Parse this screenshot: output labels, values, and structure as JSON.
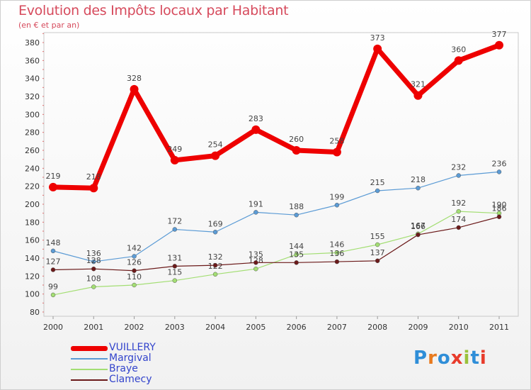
{
  "header": {
    "title": "Evolution des Impôts locaux par Habitant",
    "subtitle": "(en € et par an)"
  },
  "logo": {
    "text": "Proxiti",
    "letters": [
      "P",
      "r",
      "o",
      "x",
      "i",
      "t",
      "i"
    ],
    "letter_colors": [
      "#2f8ed8",
      "#e87a1e",
      "#2f8ed8",
      "#e83b2b",
      "#9ac23c",
      "#2f8ed8",
      "#e83b2b"
    ]
  },
  "colors": {
    "VUILLERY": "#ee0000",
    "Margival": "#5b9bd5",
    "Braye": "#a3de73",
    "Clamecy": "#6b1a1a",
    "axis_text": "#333333",
    "label_text": "#444444"
  },
  "chart_data": {
    "type": "line",
    "title": "Evolution des Impôts locaux par Habitant",
    "subtitle": "(en € et par an)",
    "categories": [
      "2000",
      "2001",
      "2002",
      "2003",
      "2004",
      "2005",
      "2006",
      "2007",
      "2008",
      "2009",
      "2010",
      "2011"
    ],
    "ylim": [
      80,
      385
    ],
    "yticks": [
      80,
      100,
      120,
      140,
      160,
      180,
      200,
      220,
      240,
      260,
      280,
      300,
      320,
      340,
      360,
      380
    ],
    "grid": false,
    "legend_position": "bottom-left",
    "series": [
      {
        "name": "Margival",
        "values": [
          148,
          136,
          142,
          172,
          169,
          191,
          188,
          199,
          215,
          218,
          232,
          236
        ],
        "labels": [
          "148",
          "136",
          "142",
          "172",
          "169",
          "191",
          "188",
          "199",
          "215",
          "218",
          "232",
          "236"
        ]
      },
      {
        "name": "Braye",
        "values": [
          99,
          108,
          110,
          115,
          122,
          128,
          144,
          146,
          155,
          167,
          192,
          190
        ],
        "labels": [
          "99",
          "108",
          "110",
          "115",
          "122",
          "128",
          "144",
          "146",
          "155",
          "167",
          "192",
          "190"
        ]
      },
      {
        "name": "Clamecy",
        "values": [
          127,
          128,
          126,
          131,
          132,
          135,
          135,
          136,
          137,
          166,
          174,
          186
        ],
        "labels": [
          "127",
          "128",
          "126",
          "131",
          "132",
          "135",
          "135",
          "136",
          "137",
          "166",
          "174",
          "186"
        ]
      },
      {
        "name": "VUILLERY",
        "values": [
          219,
          218,
          328,
          249,
          254,
          283,
          260,
          258,
          373,
          321,
          360,
          377
        ],
        "labels": [
          "219",
          "218",
          "328",
          "249",
          "254",
          "283",
          "260",
          "258",
          "373",
          "321",
          "360",
          "377"
        ]
      }
    ]
  }
}
